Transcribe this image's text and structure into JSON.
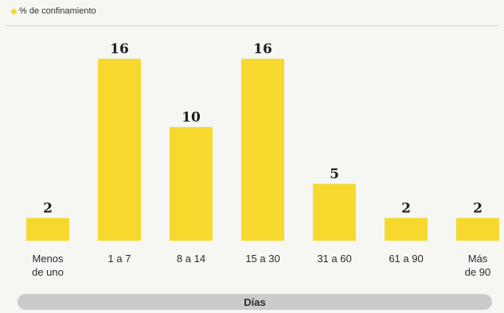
{
  "chart_data": {
    "type": "bar",
    "legend": "% de confinamiento",
    "categories": [
      "Menos\nde uno",
      "1 a 7",
      "8 a 14",
      "15 a 30",
      "31 a 60",
      "61 a 90",
      "Más\nde 90"
    ],
    "values": [
      2,
      16,
      10,
      16,
      5,
      2,
      2
    ],
    "value_labels": [
      "2",
      "16",
      "10",
      "16",
      "5",
      "2",
      "2"
    ],
    "xlabel": "Días",
    "ylabel": "",
    "ylim": [
      0,
      16
    ],
    "grid": false,
    "legend_position": "top-left"
  },
  "colors": {
    "bar": "#f7d92e",
    "legend_swatch": "#f7d92e",
    "axis_bar": "#cbcbcb"
  }
}
